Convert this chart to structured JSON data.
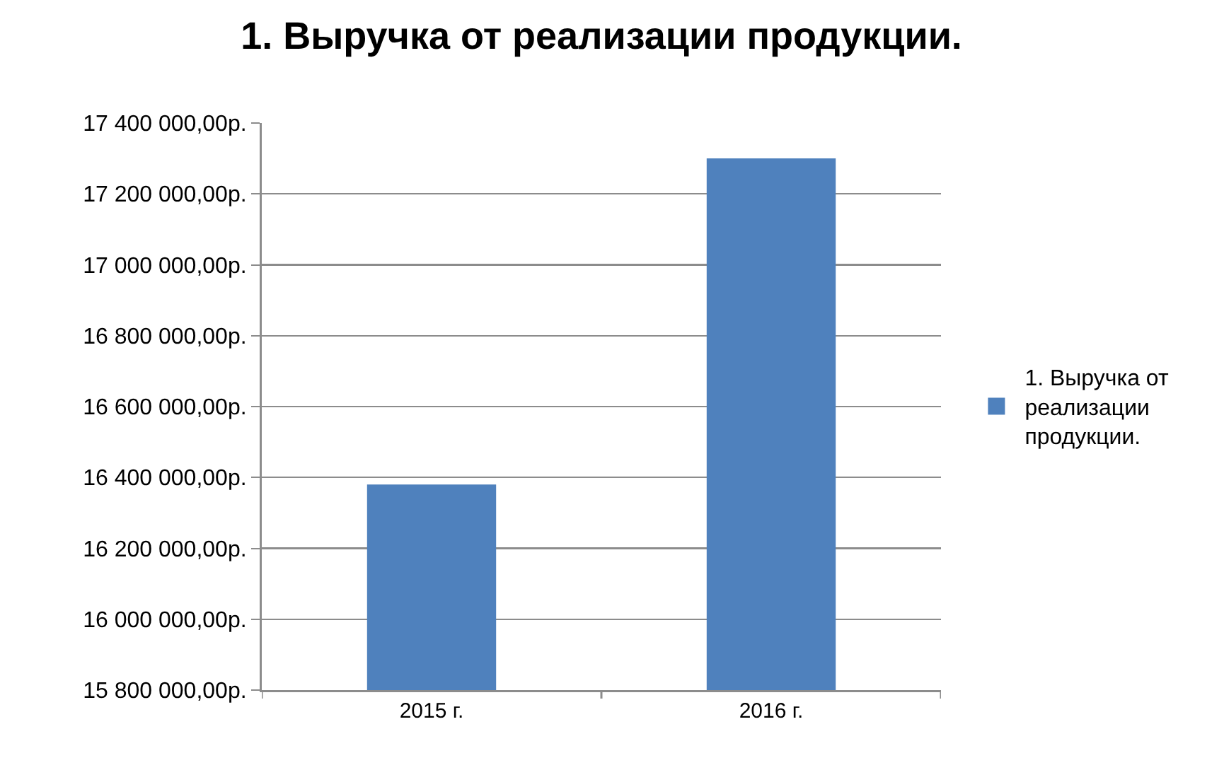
{
  "chart_data": {
    "type": "bar",
    "title": "1. Выручка от реализации продукции.",
    "categories": [
      "2015 г.",
      "2016 г."
    ],
    "series": [
      {
        "name": "1. Выручка от реализации продукции.",
        "color": "#4f81bd",
        "values": [
          16380000,
          17300000
        ]
      }
    ],
    "ylim": [
      15800000,
      17400000
    ],
    "yticks": [
      {
        "value": 15800000,
        "label": "15 800 000,00р."
      },
      {
        "value": 16000000,
        "label": "16 000 000,00р."
      },
      {
        "value": 16200000,
        "label": "16 200 000,00р."
      },
      {
        "value": 16400000,
        "label": "16 400 000,00р."
      },
      {
        "value": 16600000,
        "label": "16 600 000,00р."
      },
      {
        "value": 16800000,
        "label": "16 800 000,00р."
      },
      {
        "value": 17000000,
        "label": "17 000 000,00р."
      },
      {
        "value": 17200000,
        "label": "17 200 000,00р."
      },
      {
        "value": 17400000,
        "label": "17 400 000,00р."
      }
    ],
    "grid": "y",
    "legend": "right"
  }
}
